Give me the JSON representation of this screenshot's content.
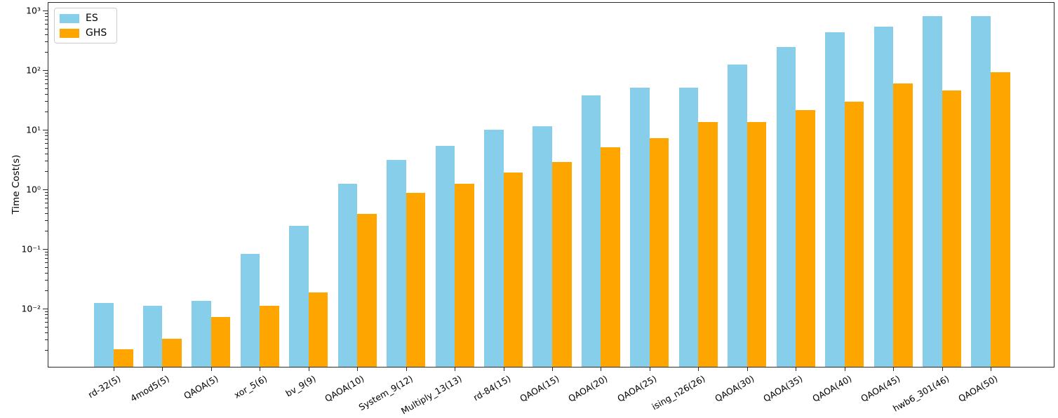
{
  "figure": {
    "background": "#ffffff",
    "spine_color": "#2b2b2b",
    "text_color": "#000000"
  },
  "legend": {
    "position": "upper left",
    "entries": [
      {
        "label": "ES",
        "color": "#87CEEB",
        "swatch": "es-swatch"
      },
      {
        "label": "GHS",
        "color": "#FFA500",
        "swatch": "ghs-swatch"
      }
    ]
  },
  "chart_data": {
    "type": "bar",
    "yscale": "log",
    "title": "",
    "xlabel": "",
    "ylabel": "Time Cost(s)",
    "grid": false,
    "legend_position": "upper left",
    "ylim": [
      0.001,
      1400
    ],
    "categories": [
      "rd-32(5)",
      "4mod5(5)",
      "QAOA(5)",
      "xor_5(6)",
      "bv_9(9)",
      "QAOA(10)",
      "System_9(12)",
      "Multiply_13(13)",
      "rd-84(15)",
      "QAOA(15)",
      "QAOA(20)",
      "QAOA(25)",
      "ising_n26(26)",
      "QAOA(30)",
      "QAOA(35)",
      "QAOA(40)",
      "QAOA(45)",
      "hwb6_301(46)",
      "QAOA(50)"
    ],
    "series": [
      {
        "name": "ES",
        "color": "#87CEEB",
        "values": [
          0.012,
          0.011,
          0.013,
          0.08,
          0.24,
          1.2,
          3.0,
          5.2,
          9.8,
          11,
          37,
          50,
          50,
          120,
          240,
          420,
          520,
          780,
          780
        ]
      },
      {
        "name": "GHS",
        "color": "#FFA500",
        "values": [
          0.002,
          0.003,
          0.007,
          0.011,
          0.018,
          0.38,
          0.85,
          1.2,
          1.85,
          2.8,
          5.0,
          7.0,
          13,
          13,
          21,
          29,
          58,
          44,
          90
        ]
      }
    ],
    "yticks": [
      {
        "exp": -2,
        "label": "10⁻²"
      },
      {
        "exp": -1,
        "label": "10⁻¹"
      },
      {
        "exp": 0,
        "label": "10⁰"
      },
      {
        "exp": 1,
        "label": "10¹"
      },
      {
        "exp": 2,
        "label": "10²"
      },
      {
        "exp": 3,
        "label": "10³"
      }
    ]
  }
}
